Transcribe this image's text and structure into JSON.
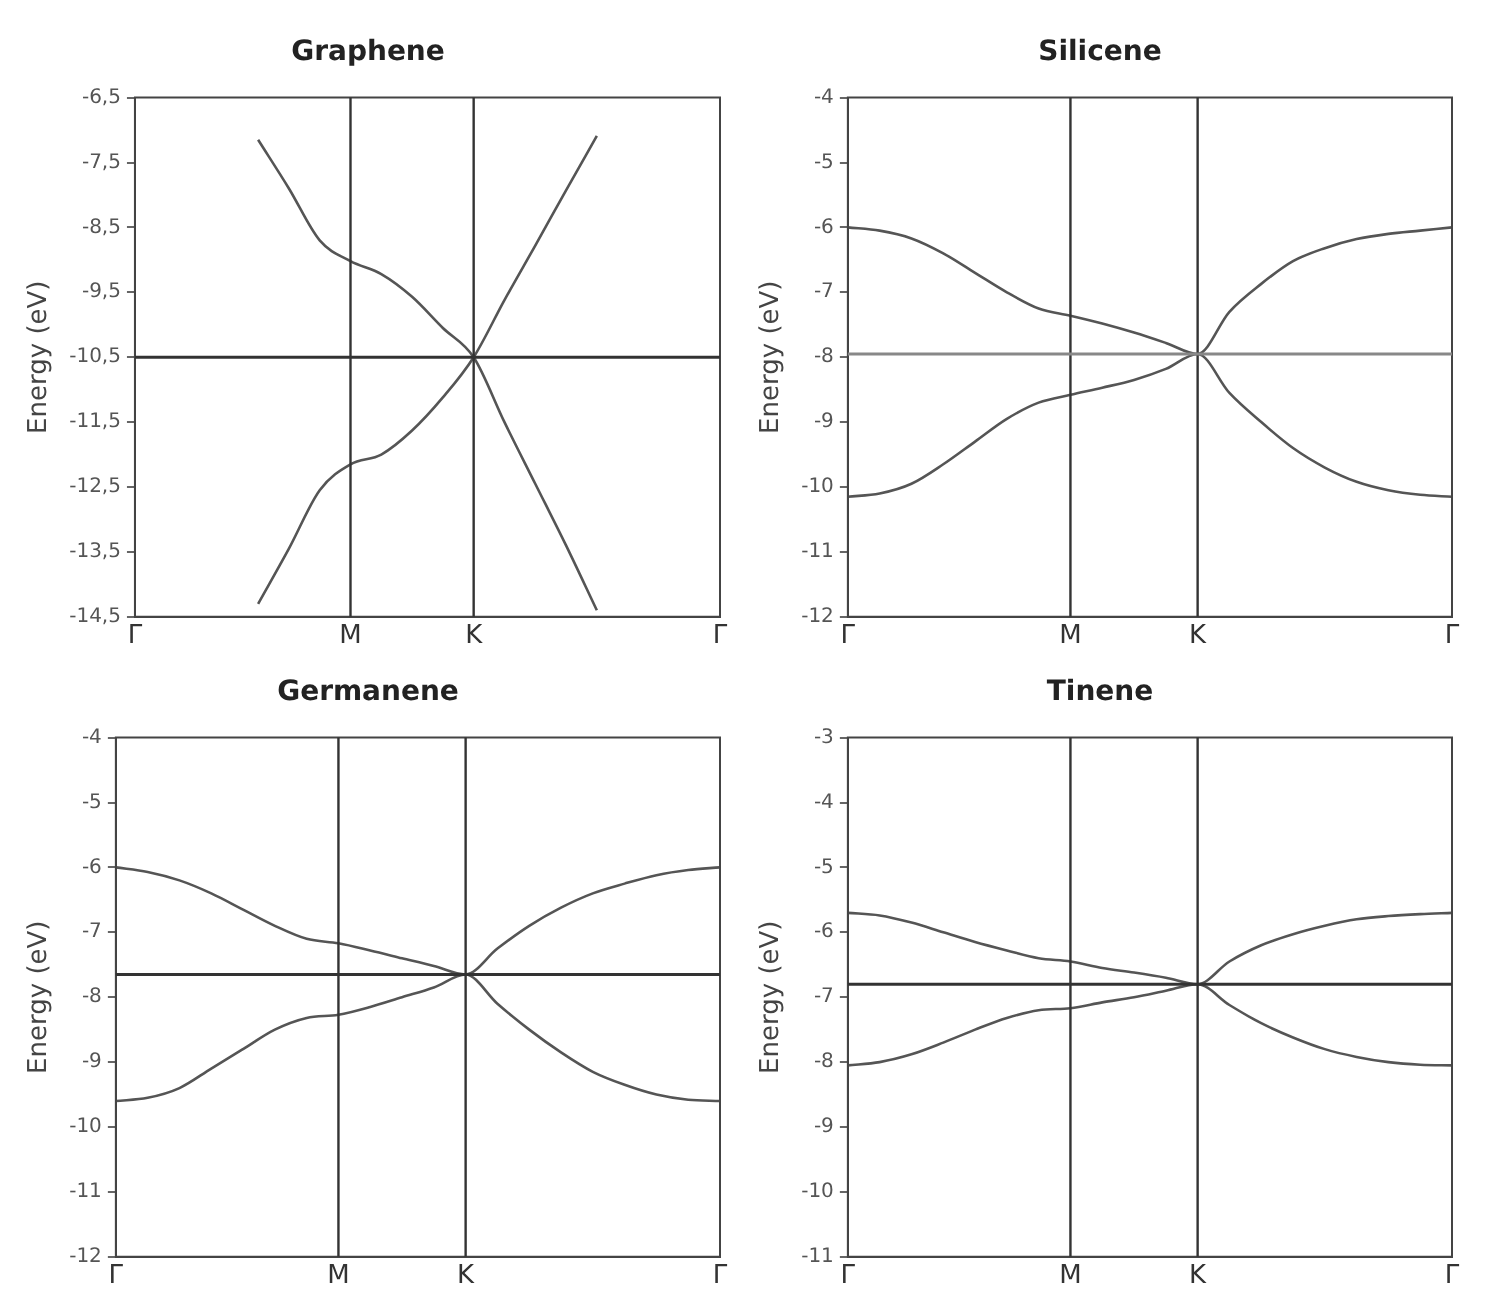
{
  "chart_data": [
    {
      "type": "line",
      "title": "Graphene",
      "ylabel": "Energy (eV)",
      "marker": "none",
      "grid": false,
      "categories": [
        "Γ",
        null,
        null,
        null,
        null,
        null,
        null,
        "M",
        null,
        null,
        null,
        "K",
        null,
        null,
        null,
        null,
        null,
        null,
        null,
        "Γ"
      ],
      "ylim": [
        -14.5,
        -6.5
      ],
      "yticks": [
        {
          "value": -14.5,
          "label": "-14,5"
        },
        {
          "value": -13.5,
          "label": "-13,5"
        },
        {
          "value": -12.5,
          "label": "-12,5"
        },
        {
          "value": -11.5,
          "label": "-11,5"
        },
        {
          "value": -10.5,
          "label": "-10,5"
        },
        {
          "value": -9.5,
          "label": "-9,5"
        },
        {
          "value": -8.5,
          "label": "-8,5"
        },
        {
          "value": -7.5,
          "label": "-7,5"
        },
        {
          "value": -6.5,
          "label": "-6,5"
        }
      ],
      "ref_lines": [
        {
          "axis": "x",
          "value": "M",
          "color": "#333333"
        },
        {
          "axis": "x",
          "value": "K",
          "color": "#333333"
        },
        {
          "axis": "y",
          "value": -10.5,
          "color": "#333333"
        }
      ],
      "series": [
        {
          "color": "#555555",
          "values": [
            null,
            null,
            null,
            null,
            -7.15,
            -7.9,
            -8.7,
            -9.02,
            -9.22,
            -9.57,
            -10.05,
            -10.5,
            -11.5,
            -12.45,
            -13.4,
            -14.4,
            null,
            null,
            null,
            null
          ]
        },
        {
          "color": "#555555",
          "values": [
            null,
            null,
            null,
            null,
            -14.3,
            -13.45,
            -12.55,
            -12.15,
            -12.0,
            -11.63,
            -11.12,
            -10.5,
            -9.62,
            -8.78,
            -7.93,
            -7.09,
            null,
            null,
            null,
            null
          ]
        }
      ]
    },
    {
      "type": "line",
      "title": "Silicene",
      "ylabel": "Energy (eV)",
      "marker": "none",
      "grid": false,
      "categories": [
        "Γ",
        null,
        null,
        null,
        null,
        null,
        null,
        "M",
        null,
        null,
        null,
        "K",
        null,
        null,
        null,
        null,
        null,
        null,
        null,
        "Γ"
      ],
      "ylim": [
        -12,
        -4
      ],
      "yticks": [
        -12,
        -11,
        -10,
        -9,
        -8,
        -7,
        -6,
        -5,
        -4
      ],
      "ref_lines": [
        {
          "axis": "x",
          "value": "M",
          "color": "#333333"
        },
        {
          "axis": "x",
          "value": "K",
          "color": "#333333"
        },
        {
          "axis": "y",
          "value": -7.95,
          "color": "#888888"
        }
      ],
      "series": [
        {
          "color": "#555555",
          "values": [
            -6.0,
            -6.05,
            -6.17,
            -6.4,
            -6.7,
            -7.0,
            -7.25,
            -7.36,
            -7.48,
            -7.62,
            -7.78,
            -7.95,
            -7.3,
            -6.87,
            -6.52,
            -6.32,
            -6.18,
            -6.1,
            -6.05,
            -6.0
          ]
        },
        {
          "color": "#555555",
          "values": [
            -10.15,
            -10.1,
            -9.95,
            -9.65,
            -9.3,
            -8.95,
            -8.7,
            -8.58,
            -8.47,
            -8.35,
            -8.18,
            -7.95,
            -8.55,
            -9.0,
            -9.4,
            -9.7,
            -9.92,
            -10.05,
            -10.12,
            -10.15
          ]
        }
      ]
    },
    {
      "type": "line",
      "title": "Germanene",
      "ylabel": "Energy (eV)",
      "marker": "none",
      "grid": false,
      "categories": [
        "Γ",
        null,
        null,
        null,
        null,
        null,
        null,
        "M",
        null,
        null,
        null,
        "K",
        null,
        null,
        null,
        null,
        null,
        null,
        null,
        "Γ"
      ],
      "ylim": [
        -12,
        -4
      ],
      "yticks": [
        -12,
        -11,
        -10,
        -9,
        -8,
        -7,
        -6,
        -5,
        -4
      ],
      "ref_lines": [
        {
          "axis": "x",
          "value": "M",
          "color": "#333333"
        },
        {
          "axis": "x",
          "value": "K",
          "color": "#333333"
        },
        {
          "axis": "y",
          "value": -7.65,
          "color": "#333333"
        }
      ],
      "series": [
        {
          "color": "#555555",
          "values": [
            -6.0,
            -6.07,
            -6.2,
            -6.4,
            -6.65,
            -6.9,
            -7.1,
            -7.17,
            -7.28,
            -7.4,
            -7.52,
            -7.65,
            -7.25,
            -6.9,
            -6.62,
            -6.4,
            -6.25,
            -6.12,
            -6.04,
            -6.0
          ]
        },
        {
          "color": "#555555",
          "values": [
            -9.6,
            -9.55,
            -9.4,
            -9.1,
            -8.8,
            -8.5,
            -8.32,
            -8.27,
            -8.15,
            -8.0,
            -7.85,
            -7.65,
            -8.1,
            -8.5,
            -8.85,
            -9.15,
            -9.35,
            -9.5,
            -9.58,
            -9.6
          ]
        }
      ]
    },
    {
      "type": "line",
      "title": "Tinene",
      "ylabel": "Energy (eV)",
      "marker": "none",
      "grid": false,
      "categories": [
        "Γ",
        null,
        null,
        null,
        null,
        null,
        null,
        "M",
        null,
        null,
        null,
        "K",
        null,
        null,
        null,
        null,
        null,
        null,
        null,
        "Γ"
      ],
      "ylim": [
        -11,
        -3
      ],
      "yticks": [
        -11,
        -10,
        -9,
        -8,
        -7,
        -6,
        -5,
        -4,
        -3
      ],
      "ref_lines": [
        {
          "axis": "x",
          "value": "M",
          "color": "#333333"
        },
        {
          "axis": "x",
          "value": "K",
          "color": "#333333"
        },
        {
          "axis": "y",
          "value": -6.8,
          "color": "#333333"
        }
      ],
      "series": [
        {
          "color": "#555555",
          "values": [
            -5.7,
            -5.74,
            -5.85,
            -6.0,
            -6.15,
            -6.28,
            -6.4,
            -6.45,
            -6.55,
            -6.62,
            -6.7,
            -6.8,
            -6.45,
            -6.2,
            -6.03,
            -5.9,
            -5.8,
            -5.75,
            -5.72,
            -5.7
          ]
        },
        {
          "color": "#555555",
          "values": [
            -8.05,
            -8.0,
            -7.88,
            -7.7,
            -7.5,
            -7.32,
            -7.2,
            -7.17,
            -7.08,
            -7.0,
            -6.9,
            -6.8,
            -7.12,
            -7.4,
            -7.62,
            -7.8,
            -7.92,
            -8.0,
            -8.04,
            -8.05
          ]
        }
      ]
    }
  ]
}
